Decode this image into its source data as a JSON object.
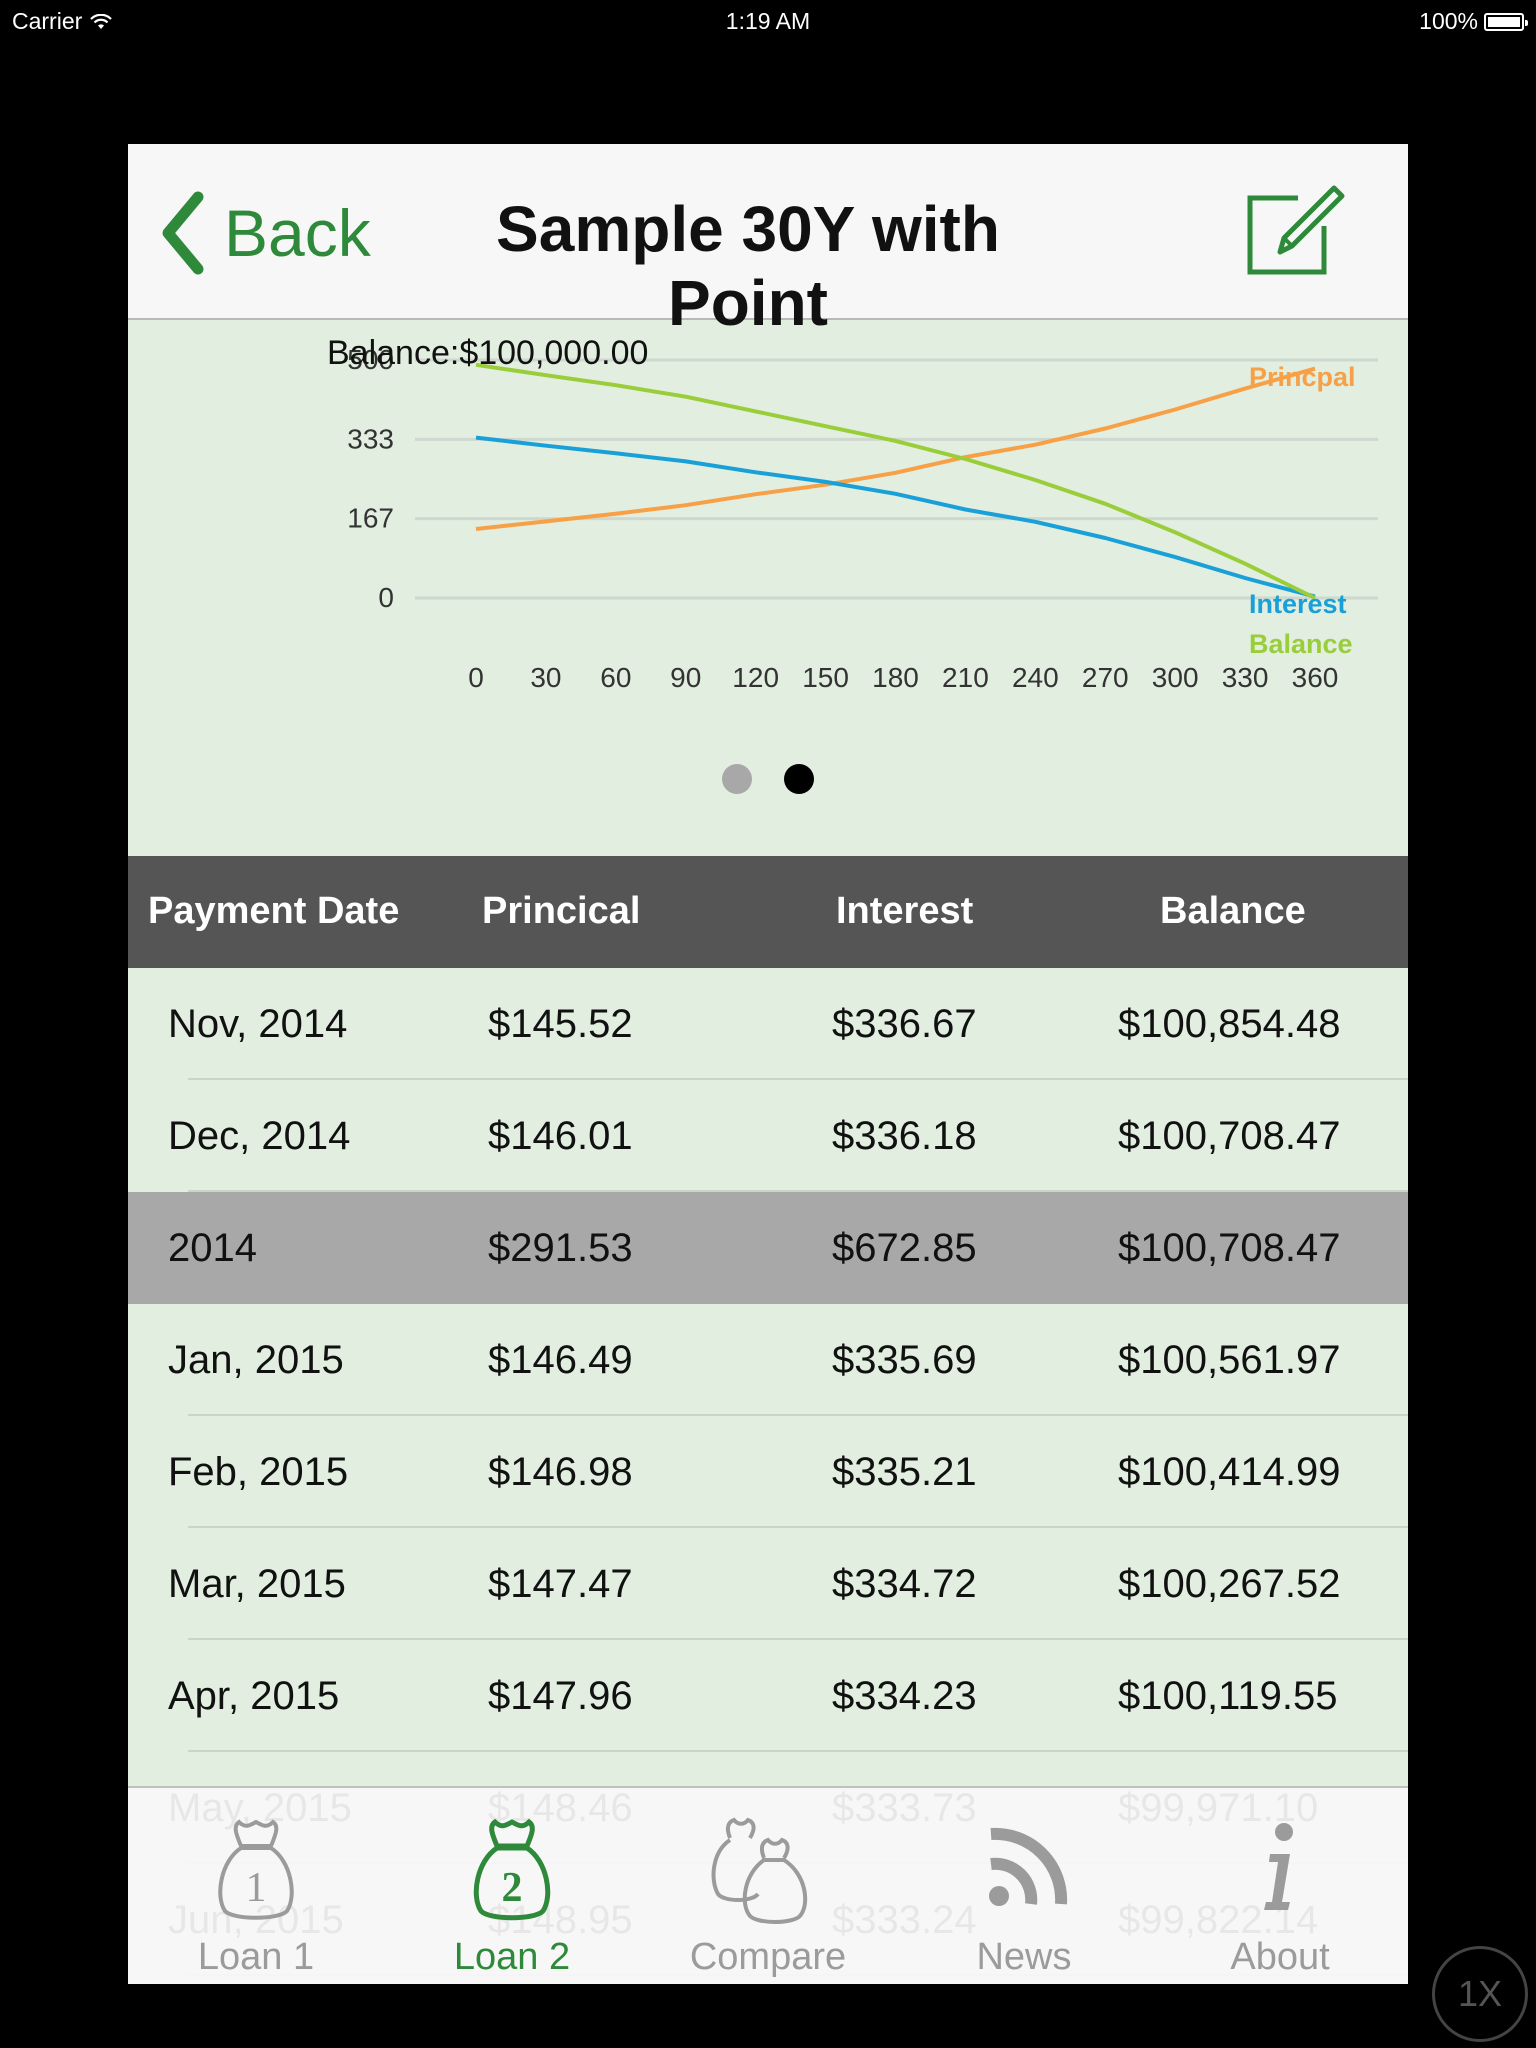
{
  "status_bar": {
    "carrier": "Carrier",
    "time": "1:19 AM",
    "battery": "100%"
  },
  "nav": {
    "back_label": "Back",
    "title": "Sample 30Y with Point"
  },
  "chart_caption": "Balance:$100,000.00",
  "chart_data": {
    "type": "line",
    "x": [
      0,
      30,
      60,
      90,
      120,
      150,
      180,
      210,
      240,
      270,
      300,
      330,
      360
    ],
    "y_ticks": [
      "0",
      "167",
      "333",
      "500"
    ],
    "x_ticks": [
      "0",
      "30",
      "60",
      "90",
      "120",
      "150",
      "180",
      "210",
      "240",
      "270",
      "300",
      "330",
      "360"
    ],
    "ylim": [
      0,
      500
    ],
    "grid": true,
    "legend_placement": "right",
    "series": [
      {
        "name": "Princpal",
        "color": "#f7a046",
        "values": [
          145,
          161,
          177,
          195,
          218,
          238,
          263,
          296,
          322,
          356,
          396,
          440,
          482
        ]
      },
      {
        "name": "Interest",
        "color": "#1aa0d8",
        "values": [
          337,
          320,
          304,
          287,
          264,
          244,
          219,
          186,
          160,
          126,
          86,
          42,
          3
        ]
      },
      {
        "name": "Balance",
        "color": "#9acd3a",
        "values": [
          490,
          468,
          447,
          423,
          392,
          361,
          330,
          292,
          248,
          198,
          138,
          72,
          0
        ]
      }
    ]
  },
  "pager": {
    "pages": 2,
    "active": 2
  },
  "table": {
    "headers": [
      "Payment Date",
      "Princical",
      "Interest",
      "Balance"
    ],
    "rows": [
      {
        "date": "Nov, 2014",
        "principal": "$145.52",
        "interest": "$336.67",
        "balance": "$100,854.48",
        "total": false
      },
      {
        "date": "Dec, 2014",
        "principal": "$146.01",
        "interest": "$336.18",
        "balance": "$100,708.47",
        "total": false
      },
      {
        "date": "2014",
        "principal": "$291.53",
        "interest": "$672.85",
        "balance": "$100,708.47",
        "total": true
      },
      {
        "date": "Jan, 2015",
        "principal": "$146.49",
        "interest": "$335.69",
        "balance": "$100,561.97",
        "total": false
      },
      {
        "date": "Feb, 2015",
        "principal": "$146.98",
        "interest": "$335.21",
        "balance": "$100,414.99",
        "total": false
      },
      {
        "date": "Mar, 2015",
        "principal": "$147.47",
        "interest": "$334.72",
        "balance": "$100,267.52",
        "total": false
      },
      {
        "date": "Apr, 2015",
        "principal": "$147.96",
        "interest": "$334.23",
        "balance": "$100,119.55",
        "total": false
      },
      {
        "date": "May, 2015",
        "principal": "$148.46",
        "interest": "$333.73",
        "balance": "$99,971.10",
        "total": false
      },
      {
        "date": "Jun, 2015",
        "principal": "$148.95",
        "interest": "$333.24",
        "balance": "$99,822.14",
        "total": false
      }
    ]
  },
  "tabs": [
    {
      "label": "Loan 1",
      "icon": "money-bag-1-icon",
      "active": false
    },
    {
      "label": "Loan 2",
      "icon": "money-bag-2-icon",
      "active": true
    },
    {
      "label": "Compare",
      "icon": "money-bags-icon",
      "active": false
    },
    {
      "label": "News",
      "icon": "rss-icon",
      "active": false
    },
    {
      "label": "About",
      "icon": "info-icon",
      "active": false
    }
  ],
  "colors": {
    "accent": "#2e8a3a",
    "background": "#e1eee0",
    "header": "#555555",
    "total_row": "#a8a8a8"
  },
  "zoom_button": "1X"
}
